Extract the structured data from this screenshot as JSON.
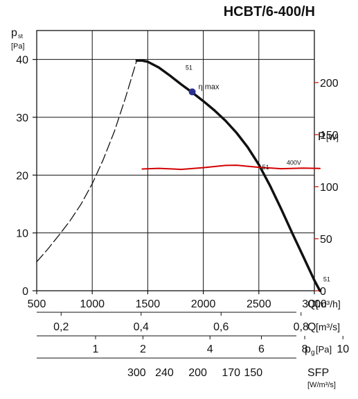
{
  "title": "HCBT/6-400/H",
  "colors": {
    "main": "#111111",
    "power": "#d40000",
    "eta_point": "#2b2f8f",
    "grid": "#111111"
  },
  "chart_data": {
    "type": "line",
    "title": "HCBT/6-400/H",
    "x": {
      "label": "Q",
      "unit": "[m³/h]",
      "lim": [
        500,
        3000
      ],
      "ticks": [
        500,
        1000,
        1500,
        2000,
        2500,
        3000
      ],
      "grid": true
    },
    "y_left": {
      "label": "p",
      "sub": "st",
      "unit": "[Pa]",
      "lim": [
        0,
        45
      ],
      "ticks": [
        0,
        10,
        20,
        30,
        40
      ]
    },
    "y_right": {
      "label": "P",
      "unit": "[W]",
      "lim": [
        0,
        250
      ],
      "ticks": [
        0,
        50,
        100,
        150,
        200
      ]
    },
    "secondary_axes": [
      {
        "label": "Q",
        "unit": "[m³/s]",
        "ticks": [
          0.2,
          0.4,
          0.6,
          0.8
        ],
        "tick_labels": [
          "0,2",
          "0,4",
          "0,6",
          "0,8"
        ],
        "flow_per_unit": 3600
      },
      {
        "label": "p",
        "sub": "g",
        "unit": "[Pa]",
        "ticks": [
          1,
          2,
          4,
          6,
          8,
          10
        ]
      },
      {
        "label": "SFP",
        "unit": "[W/m³/s]",
        "ticks": [
          300,
          240,
          200,
          170,
          150
        ],
        "tick_x": [
          1400,
          1650,
          1950,
          2250,
          2450
        ]
      }
    ],
    "series": [
      {
        "name": "51",
        "axis": "left",
        "style": "solid",
        "x": [
          1400,
          1450,
          1500,
          1600,
          1700,
          1800,
          1900,
          2000,
          2100,
          2200,
          2300,
          2400,
          2500,
          2600,
          2700,
          2800,
          2900,
          3000,
          3050
        ],
        "y": [
          39.8,
          39.8,
          39.6,
          38.6,
          37.2,
          35.7,
          34.3,
          32.8,
          31.2,
          29.4,
          27.3,
          24.8,
          21.8,
          18.2,
          14.2,
          10.0,
          5.9,
          1.8,
          0
        ]
      },
      {
        "name": "",
        "axis": "left",
        "style": "dashed",
        "x": [
          500,
          600,
          700,
          800,
          900,
          1000,
          1100,
          1200,
          1300,
          1400
        ],
        "y": [
          5.0,
          7.2,
          9.6,
          12.1,
          15.0,
          18.5,
          22.7,
          27.6,
          33.4,
          39.8
        ]
      },
      {
        "name": "400V",
        "axis": "right",
        "style": "solid",
        "x": [
          1450,
          1600,
          1800,
          2000,
          2200,
          2300,
          2500,
          2700,
          2900,
          3050
        ],
        "y": [
          117,
          117.6,
          116.6,
          118.3,
          120.4,
          120.6,
          118.6,
          117.3,
          117.8,
          117.5
        ]
      }
    ],
    "annotations": [
      {
        "text": "η max",
        "x": 1900,
        "y": 34.4,
        "marker": true
      },
      {
        "text": "51",
        "x": 1840,
        "y": 38.2
      },
      {
        "text": "51",
        "x": 2530,
        "y": 21.0
      },
      {
        "text": "51",
        "x": 3080,
        "y": 1.6
      },
      {
        "text": "400V",
        "x": 2750,
        "y": 121
      }
    ]
  }
}
